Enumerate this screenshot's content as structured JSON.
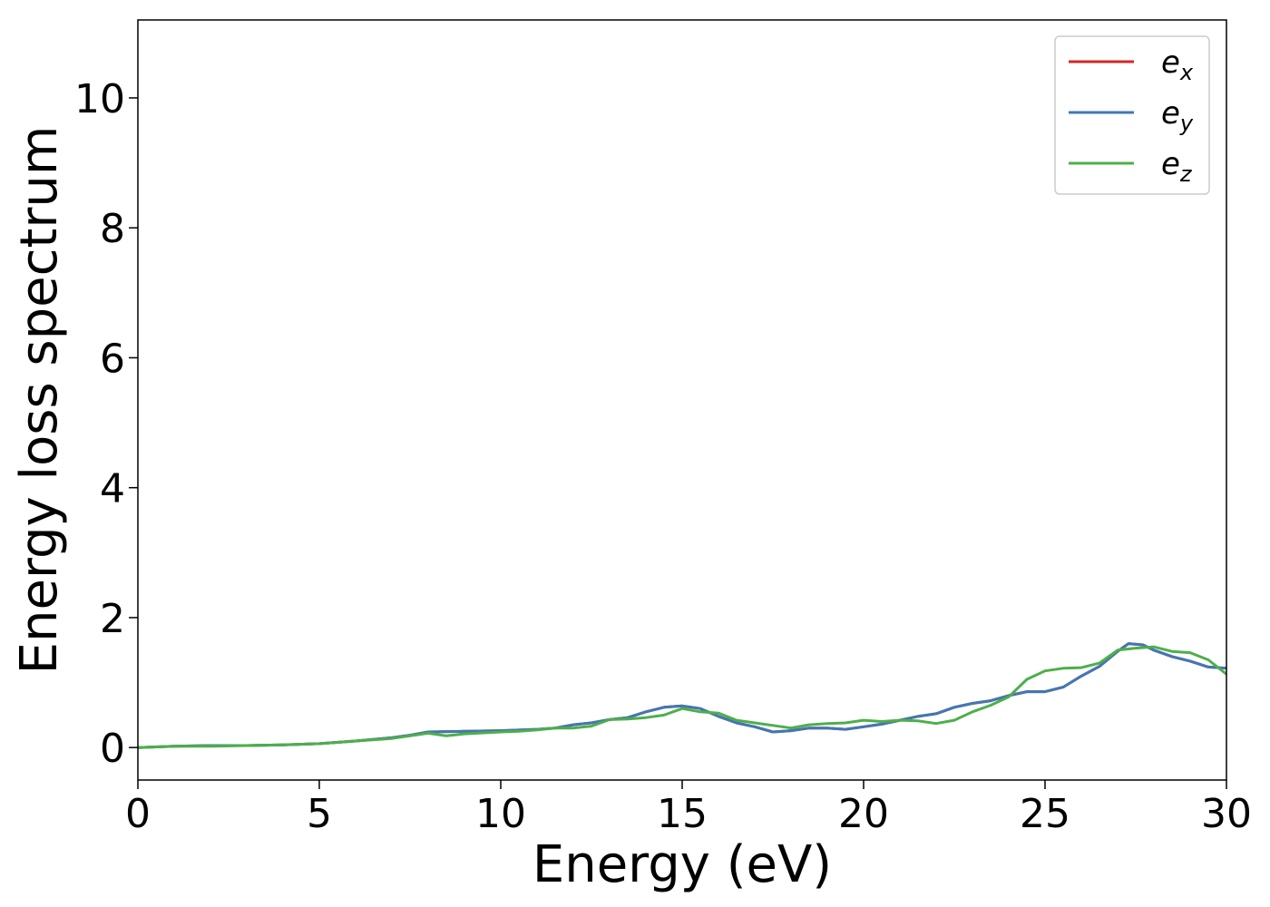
{
  "chart_data": {
    "type": "line",
    "title": "",
    "xlabel": "Energy (eV)",
    "ylabel": "Energy loss spectrum",
    "xlim": [
      0,
      30
    ],
    "ylim": [
      -0.5,
      11.2
    ],
    "xticks": [
      0,
      5,
      10,
      15,
      20,
      25,
      30
    ],
    "yticks": [
      0,
      2,
      4,
      6,
      8,
      10
    ],
    "grid": false,
    "legend_position": "top-right",
    "series": [
      {
        "name": "e_x",
        "legend_base": "e",
        "legend_sub": "x",
        "color": "#d62728",
        "x": [
          0,
          1,
          2,
          3,
          4,
          5,
          6,
          7,
          7.5,
          8,
          9,
          10,
          11,
          11.5,
          12,
          12.5,
          13,
          13.5,
          14,
          14.5,
          15,
          15.5,
          16,
          16.5,
          17,
          17.5,
          18,
          18.5,
          19,
          19.5,
          20,
          20.5,
          21,
          21.5,
          22,
          22.5,
          23,
          23.5,
          24,
          24.5,
          25,
          25.5,
          26,
          26.5,
          27,
          27.3,
          27.7,
          28,
          28.5,
          29,
          29.5,
          30
        ],
        "y": [
          0,
          0.02,
          0.03,
          0.03,
          0.04,
          0.06,
          0.1,
          0.15,
          0.19,
          0.24,
          0.25,
          0.26,
          0.28,
          0.3,
          0.35,
          0.38,
          0.43,
          0.46,
          0.55,
          0.62,
          0.64,
          0.6,
          0.48,
          0.38,
          0.32,
          0.24,
          0.26,
          0.3,
          0.3,
          0.28,
          0.32,
          0.36,
          0.42,
          0.48,
          0.52,
          0.62,
          0.68,
          0.72,
          0.8,
          0.86,
          0.86,
          0.93,
          1.1,
          1.25,
          1.48,
          1.6,
          1.58,
          1.5,
          1.4,
          1.33,
          1.24,
          1.22
        ]
      },
      {
        "name": "e_y",
        "legend_base": "e",
        "legend_sub": "y",
        "color": "#3f78b5",
        "x": [
          0,
          1,
          2,
          3,
          4,
          5,
          6,
          7,
          7.5,
          8,
          9,
          10,
          11,
          11.5,
          12,
          12.5,
          13,
          13.5,
          14,
          14.5,
          15,
          15.5,
          16,
          16.5,
          17,
          17.5,
          18,
          18.5,
          19,
          19.5,
          20,
          20.5,
          21,
          21.5,
          22,
          22.5,
          23,
          23.5,
          24,
          24.5,
          25,
          25.5,
          26,
          26.5,
          27,
          27.3,
          27.7,
          28,
          28.5,
          29,
          29.5,
          30
        ],
        "y": [
          0,
          0.02,
          0.03,
          0.03,
          0.04,
          0.06,
          0.1,
          0.15,
          0.19,
          0.24,
          0.25,
          0.26,
          0.28,
          0.3,
          0.35,
          0.38,
          0.43,
          0.46,
          0.55,
          0.62,
          0.64,
          0.6,
          0.48,
          0.38,
          0.32,
          0.24,
          0.26,
          0.3,
          0.3,
          0.28,
          0.32,
          0.36,
          0.42,
          0.48,
          0.52,
          0.62,
          0.68,
          0.72,
          0.8,
          0.86,
          0.86,
          0.93,
          1.1,
          1.25,
          1.48,
          1.6,
          1.58,
          1.5,
          1.4,
          1.33,
          1.24,
          1.22
        ]
      },
      {
        "name": "e_z",
        "legend_base": "e",
        "legend_sub": "z",
        "color": "#4daf4a",
        "x": [
          0,
          1,
          2,
          3,
          4,
          5,
          6,
          7,
          7.5,
          8,
          8.5,
          9,
          10,
          10.5,
          11,
          11.5,
          12,
          12.5,
          13,
          13.5,
          14,
          14.5,
          15,
          15.5,
          16,
          16.5,
          17,
          17.5,
          18,
          18.5,
          19,
          19.5,
          20,
          20.5,
          21,
          21.5,
          22,
          22.5,
          23,
          23.5,
          24,
          24.5,
          25,
          25.5,
          26,
          26.5,
          27,
          27.5,
          28,
          28.5,
          29,
          29.5,
          30
        ],
        "y": [
          0,
          0.02,
          0.02,
          0.03,
          0.04,
          0.06,
          0.1,
          0.14,
          0.18,
          0.22,
          0.18,
          0.21,
          0.24,
          0.25,
          0.27,
          0.3,
          0.3,
          0.33,
          0.43,
          0.44,
          0.46,
          0.5,
          0.6,
          0.55,
          0.53,
          0.42,
          0.38,
          0.34,
          0.3,
          0.35,
          0.37,
          0.38,
          0.42,
          0.4,
          0.42,
          0.41,
          0.37,
          0.42,
          0.55,
          0.65,
          0.78,
          1.05,
          1.18,
          1.22,
          1.23,
          1.3,
          1.5,
          1.53,
          1.55,
          1.48,
          1.46,
          1.35,
          1.13
        ]
      }
    ]
  }
}
